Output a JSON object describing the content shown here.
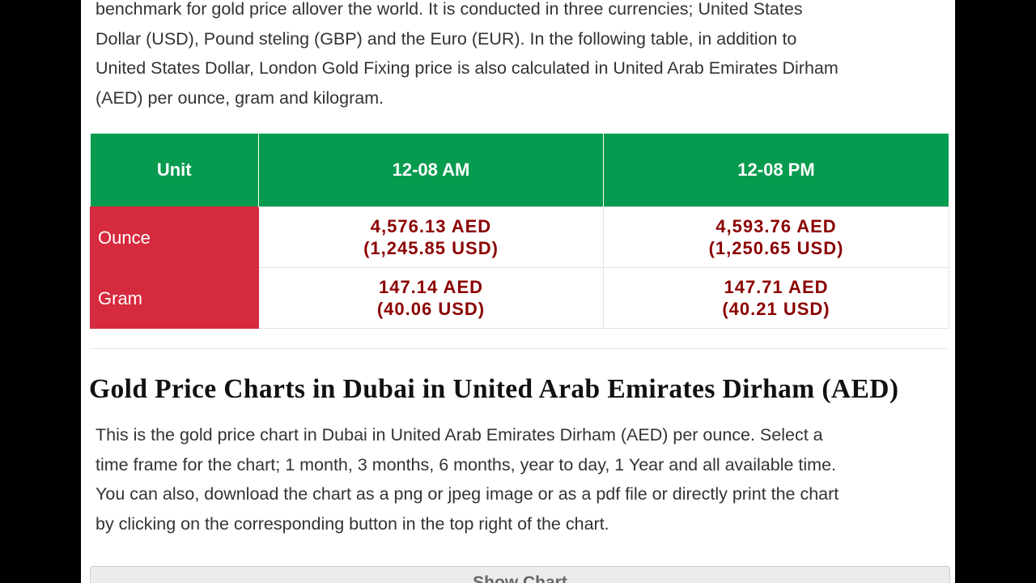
{
  "intro": {
    "lines": [
      "benchmark for gold price allover the world. It is conducted in three currencies; United States",
      "Dollar (USD), Pound steling (GBP) and the Euro (EUR). In the following table, in addition to",
      "United States Dollar, London Gold Fixing price is also calculated in United Arab Emirates Dirham",
      "(AED) per ounce, gram and kilogram."
    ]
  },
  "table": {
    "headers": [
      "Unit",
      "12-08 AM",
      "12-08 PM"
    ],
    "rows": [
      {
        "unit": "Ounce",
        "cells": [
          {
            "aed": "4,576.13 AED",
            "usd": "(1,245.85 USD)"
          },
          {
            "aed": "4,593.76 AED",
            "usd": "(1,250.65 USD)"
          }
        ]
      },
      {
        "unit": "Gram",
        "cells": [
          {
            "aed": "147.14 AED",
            "usd": "(40.06 USD)"
          },
          {
            "aed": "147.71 AED",
            "usd": "(40.21 USD)"
          }
        ]
      }
    ]
  },
  "section": {
    "heading": "Gold Price Charts in Dubai in United Arab Emirates Dirham (AED)",
    "lines": [
      "This is the gold price chart in Dubai in United Arab Emirates Dirham (AED) per ounce. Select a",
      "time frame for the chart; 1 month, 3 months, 6 months, year to day, 1 Year and all available time.",
      "You can also, download the chart as a png or jpeg image or as a pdf file or directly print the chart",
      "by clicking on the corresponding button in the top right of the chart."
    ],
    "button": "Show Chart"
  }
}
